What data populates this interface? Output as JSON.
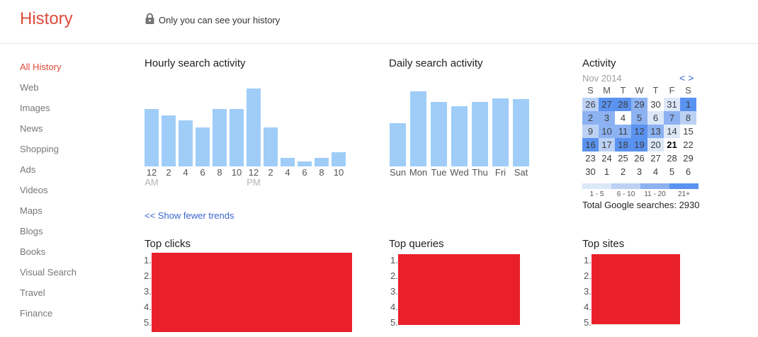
{
  "header": {
    "title": "History",
    "privacy_note": "Only you can see your history"
  },
  "sidebar": {
    "items": [
      {
        "label": "All History",
        "active": true
      },
      {
        "label": "Web",
        "active": false
      },
      {
        "label": "Images",
        "active": false
      },
      {
        "label": "News",
        "active": false
      },
      {
        "label": "Shopping",
        "active": false
      },
      {
        "label": "Ads",
        "active": false
      },
      {
        "label": "Videos",
        "active": false
      },
      {
        "label": "Maps",
        "active": false
      },
      {
        "label": "Blogs",
        "active": false
      },
      {
        "label": "Books",
        "active": false
      },
      {
        "label": "Visual Search",
        "active": false
      },
      {
        "label": "Travel",
        "active": false
      },
      {
        "label": "Finance",
        "active": false
      }
    ]
  },
  "trends": {
    "show_fewer_label": "<< Show fewer trends"
  },
  "chart_data": [
    {
      "type": "bar",
      "title": "Hourly search activity",
      "categories": [
        "12 AM",
        "2 AM",
        "4 AM",
        "6 AM",
        "8 AM",
        "10 AM",
        "12 PM",
        "2 PM",
        "4 PM",
        "6 PM",
        "8 PM",
        "10 PM"
      ],
      "values": [
        74,
        65,
        59,
        50,
        74,
        74,
        100,
        50,
        11,
        6,
        11,
        18
      ],
      "units": "relative search volume, % of max (no y-axis shown)",
      "x_labels": [
        "12",
        "2",
        "4",
        "6",
        "8",
        "10",
        "12",
        "2",
        "4",
        "6",
        "8",
        "10"
      ],
      "x_sublabels": [
        "AM",
        "",
        "",
        "",
        "",
        "",
        "PM",
        "",
        "",
        "",
        "",
        ""
      ],
      "bar_color": "#9fcdf8"
    },
    {
      "type": "bar",
      "title": "Daily search activity",
      "categories": [
        "Sun",
        "Mon",
        "Tue",
        "Wed",
        "Thu",
        "Fri",
        "Sat"
      ],
      "values": [
        58,
        100,
        86,
        80,
        86,
        91,
        90
      ],
      "units": "relative search volume, % of max (no y-axis shown)",
      "bar_color": "#9fcdf8"
    },
    {
      "type": "heatmap",
      "title": "Activity",
      "month_label": "Nov 2014",
      "weekday_headers": [
        "S",
        "M",
        "T",
        "W",
        "T",
        "F",
        "S"
      ],
      "weeks": [
        [
          {
            "day": 26,
            "level": 2
          },
          {
            "day": 27,
            "level": 4
          },
          {
            "day": 28,
            "level": 4
          },
          {
            "day": 29,
            "level": 3
          },
          {
            "day": 30,
            "level": 0
          },
          {
            "day": 31,
            "level": 1
          },
          {
            "day": 1,
            "level": 4
          }
        ],
        [
          {
            "day": 2,
            "level": 3
          },
          {
            "day": 3,
            "level": 3
          },
          {
            "day": 4,
            "level": 0
          },
          {
            "day": 5,
            "level": 3
          },
          {
            "day": 6,
            "level": 1
          },
          {
            "day": 7,
            "level": 3
          },
          {
            "day": 8,
            "level": 2
          }
        ],
        [
          {
            "day": 9,
            "level": 2
          },
          {
            "day": 10,
            "level": 3
          },
          {
            "day": 11,
            "level": 3
          },
          {
            "day": 12,
            "level": 4
          },
          {
            "day": 13,
            "level": 3
          },
          {
            "day": 14,
            "level": 1
          },
          {
            "day": 15,
            "level": 0
          }
        ],
        [
          {
            "day": 16,
            "level": 4
          },
          {
            "day": 17,
            "level": 2
          },
          {
            "day": 18,
            "level": 4
          },
          {
            "day": 19,
            "level": 4
          },
          {
            "day": 20,
            "level": 1
          },
          {
            "day": 21,
            "level": 0,
            "today": true
          },
          {
            "day": 22,
            "level": 0
          }
        ],
        [
          {
            "day": 23,
            "level": 0
          },
          {
            "day": 24,
            "level": 0
          },
          {
            "day": 25,
            "level": 0
          },
          {
            "day": 26,
            "level": 0
          },
          {
            "day": 27,
            "level": 0
          },
          {
            "day": 28,
            "level": 0
          },
          {
            "day": 29,
            "level": 0
          }
        ],
        [
          {
            "day": 30,
            "level": 0
          },
          {
            "day": 1,
            "level": 0
          },
          {
            "day": 2,
            "level": 0
          },
          {
            "day": 3,
            "level": 0
          },
          {
            "day": 4,
            "level": 0
          },
          {
            "day": 5,
            "level": 0
          },
          {
            "day": 6,
            "level": 0
          }
        ]
      ],
      "legend": [
        {
          "label": "1 - 5",
          "level": 1
        },
        {
          "label": "6 - 10",
          "level": 2
        },
        {
          "label": "11 - 20",
          "level": 3
        },
        {
          "label": "21+",
          "level": 4
        }
      ]
    }
  ],
  "activity_panel": {
    "title": "Activity",
    "month_label": "Nov 2014",
    "nav_prev": "<",
    "nav_next": ">",
    "total_label": "Total Google searches: 2930"
  },
  "top_lists": [
    {
      "id": "clicks",
      "title": "Top clicks",
      "ranks": [
        "1.",
        "2.",
        "3.",
        "4.",
        "5."
      ],
      "content_redacted": true
    },
    {
      "id": "queries",
      "title": "Top queries",
      "ranks": [
        "1.",
        "2.",
        "3.",
        "4.",
        "5."
      ],
      "content_redacted": true
    },
    {
      "id": "sites",
      "title": "Top sites",
      "ranks": [
        "1.",
        "2.",
        "3.",
        "4.",
        "5."
      ],
      "content_redacted": true
    }
  ],
  "colors": {
    "accent_red": "#dd4b39",
    "link_blue": "#3a66d1",
    "bar_blue": "#9fcdf8",
    "redaction_red": "#e9202a",
    "lock_gray": "#757575",
    "heat_levels": [
      "#ffffff",
      "#dce7f8",
      "#bcd2f5",
      "#8cb2f2",
      "#5a92f0"
    ]
  }
}
